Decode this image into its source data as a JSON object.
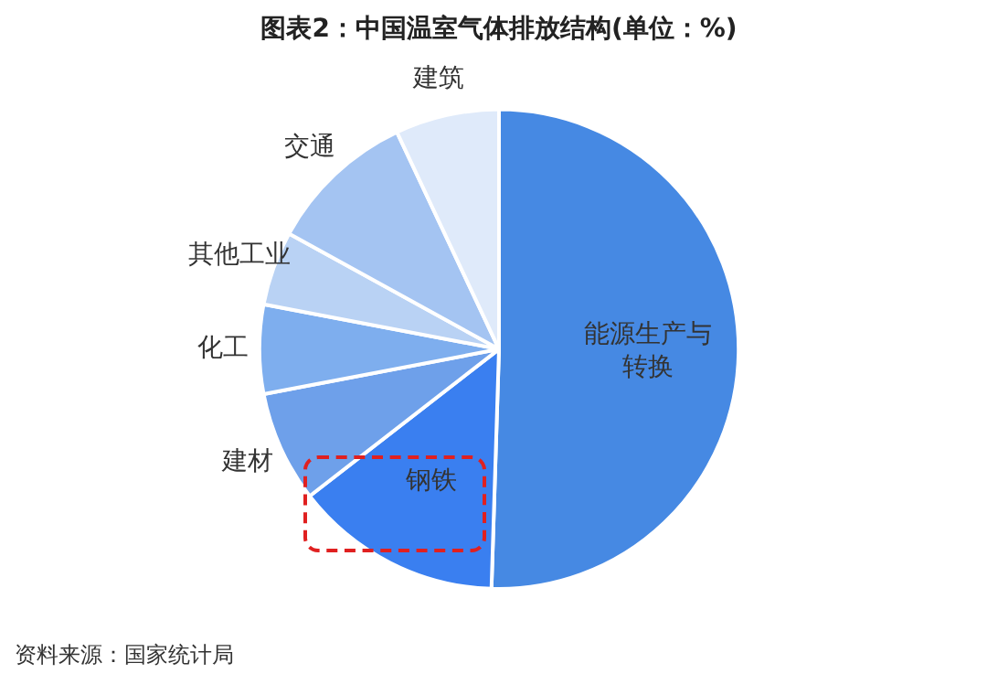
{
  "chart_data": {
    "type": "pie",
    "title": "图表2：中国温室气体排放结构(单位：%)",
    "categories": [
      "能源生产与转换",
      "钢铁",
      "建材",
      "化工",
      "其他工业",
      "交通",
      "建筑"
    ],
    "values": [
      50.5,
      14,
      7.5,
      6,
      5,
      10,
      7
    ],
    "colors": [
      "#4689e3",
      "#3a7ff0",
      "#6ea0ea",
      "#7eaeee",
      "#b9d2f4",
      "#a4c4f2",
      "#dfeafa"
    ],
    "annotations": [
      "资料来源：国家统计局"
    ]
  }
}
